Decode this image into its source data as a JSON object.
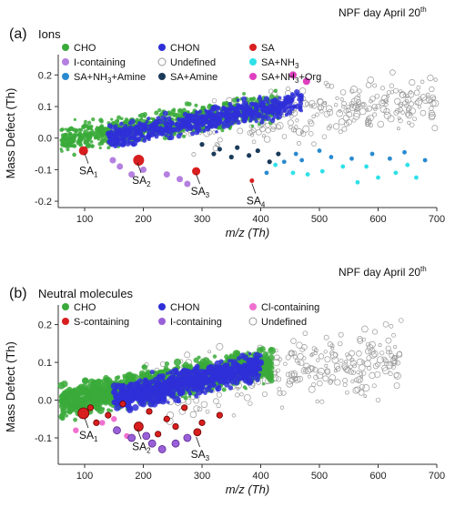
{
  "chart_data": [
    {
      "type": "scatter",
      "panel_label": "(a)",
      "panel_name": "Ions",
      "day_label": "NPF day April 20",
      "day_sup": "th",
      "xlabel": "m/z (Th)",
      "ylabel": "Mass Defect (Th)",
      "xlim": [
        55,
        700
      ],
      "ylim": [
        -0.22,
        0.25
      ],
      "xticks": [
        100,
        200,
        300,
        400,
        500,
        600,
        700
      ],
      "yticks": [
        -0.2,
        -0.1,
        0.0,
        0.1,
        0.2
      ],
      "ytick_labels": [
        "-0.2",
        "-0.1",
        "0.0",
        "0.1",
        "0.2"
      ],
      "legend": [
        {
          "label": "CHO",
          "color": "#3aaa3a",
          "marker": "filled"
        },
        {
          "label": "CHON",
          "color": "#2f2fd8",
          "marker": "filled"
        },
        {
          "label": "SA",
          "color": "#d81e1e",
          "marker": "filled"
        },
        {
          "label": "I-containing",
          "color": "#b57fe0",
          "marker": "filled"
        },
        {
          "label": "Undefined",
          "color": "#9a9a9a",
          "marker": "open"
        },
        {
          "label": "SA+NH",
          "sub": "3",
          "color": "#2fe0e8",
          "marker": "filled"
        },
        {
          "label": "SA+NH",
          "sub": "3",
          "tail": "+Amine",
          "color": "#2a8ad0",
          "marker": "filled"
        },
        {
          "label": "SA+Amine",
          "color": "#1a3a5a",
          "marker": "filled"
        },
        {
          "label": "SA+NH",
          "sub": "3",
          "tail": "+Org",
          "color": "#e040c0",
          "marker": "filled"
        }
      ],
      "annotations": [
        {
          "text": "SA",
          "sub": "1",
          "x": 100,
          "y": -0.04
        },
        {
          "text": "SA",
          "sub": "2",
          "x": 190,
          "y": -0.07
        },
        {
          "text": "SA",
          "sub": "3",
          "x": 290,
          "y": -0.105
        },
        {
          "text": "SA",
          "sub": "4",
          "x": 385,
          "y": -0.135
        }
      ],
      "sa_points": [
        [
          98,
          -0.04,
          5
        ],
        [
          192,
          -0.07,
          6
        ],
        [
          290,
          -0.105,
          4.5
        ],
        [
          385,
          -0.135,
          2.5
        ]
      ],
      "i_points": [
        [
          160,
          -0.09
        ],
        [
          180,
          -0.115
        ],
        [
          240,
          -0.115
        ],
        [
          262,
          -0.13
        ],
        [
          275,
          -0.145
        ],
        [
          148,
          -0.07
        ],
        [
          200,
          -0.1
        ]
      ],
      "sa_nh3_points": [
        [
          425,
          -0.085
        ],
        [
          480,
          -0.115
        ],
        [
          505,
          -0.105
        ],
        [
          565,
          -0.14
        ],
        [
          600,
          -0.125
        ],
        [
          650,
          -0.085
        ],
        [
          665,
          -0.125
        ],
        [
          540,
          -0.09
        ],
        [
          455,
          -0.11
        ],
        [
          580,
          -0.09
        ],
        [
          630,
          -0.11
        ]
      ],
      "sa_nh3_amine_points": [
        [
          410,
          -0.11
        ],
        [
          440,
          -0.075
        ],
        [
          470,
          -0.07
        ],
        [
          520,
          -0.06
        ],
        [
          555,
          -0.065
        ],
        [
          590,
          -0.05
        ],
        [
          620,
          -0.065
        ],
        [
          500,
          -0.04
        ],
        [
          645,
          -0.045
        ],
        [
          680,
          -0.07
        ],
        [
          460,
          -0.05
        ]
      ],
      "sa_amine_points": [
        [
          300,
          -0.02
        ],
        [
          330,
          -0.035
        ],
        [
          360,
          -0.03
        ],
        [
          380,
          -0.055
        ],
        [
          350,
          -0.06
        ],
        [
          415,
          -0.075
        ],
        [
          430,
          -0.05
        ],
        [
          395,
          -0.04
        ],
        [
          320,
          -0.05
        ]
      ],
      "sa_nh3_org_points": [
        [
          455,
          0.2
        ],
        [
          478,
          0.18
        ]
      ],
      "cho_region": {
        "x0": 60,
        "x1": 430,
        "n": 900,
        "seed": 11
      },
      "chon_region": {
        "x0": 140,
        "x1": 470,
        "n": 650,
        "seed": 23
      },
      "undef_region": {
        "x0": 260,
        "x1": 700,
        "n": 260,
        "seed": 37
      }
    },
    {
      "type": "scatter",
      "panel_label": "(b)",
      "panel_name": "Neutral molecules",
      "day_label": "NPF day April 20",
      "day_sup": "th",
      "xlabel": "m/z (Th)",
      "ylabel": "Mass Defect (Th)",
      "xlim": [
        55,
        700
      ],
      "ylim": [
        -0.17,
        0.24
      ],
      "xticks": [
        100,
        200,
        300,
        400,
        500,
        600,
        700
      ],
      "yticks": [
        -0.1,
        0.0,
        0.1,
        0.2
      ],
      "ytick_labels": [
        "-0.1",
        "0.0",
        "0.1",
        "0.2"
      ],
      "legend": [
        {
          "label": "CHO",
          "color": "#3aaa3a",
          "marker": "filled"
        },
        {
          "label": "CHON",
          "color": "#2f2fd8",
          "marker": "filled"
        },
        {
          "label": "Cl-containing",
          "color": "#f070d0",
          "marker": "filled"
        },
        {
          "label": "S-containing",
          "color": "#d81e1e",
          "marker": "filled"
        },
        {
          "label": "I-containing",
          "color": "#9a60d8",
          "marker": "filled"
        },
        {
          "label": "Undefined",
          "color": "#9a9a9a",
          "marker": "open"
        }
      ],
      "annotations": [
        {
          "text": "SA",
          "sub": "1",
          "x": 100,
          "y": -0.04
        },
        {
          "text": "SA",
          "sub": "2",
          "x": 190,
          "y": -0.07
        },
        {
          "text": "SA",
          "sub": "3",
          "x": 290,
          "y": -0.09
        }
      ],
      "sa_points": [
        [
          98,
          -0.035,
          6
        ],
        [
          192,
          -0.07,
          5
        ],
        [
          292,
          -0.085,
          4
        ]
      ],
      "i_points": [
        [
          155,
          -0.08
        ],
        [
          180,
          -0.1
        ],
        [
          215,
          -0.115
        ],
        [
          232,
          -0.13
        ],
        [
          255,
          -0.115
        ],
        [
          275,
          -0.1
        ],
        [
          205,
          -0.095
        ]
      ],
      "cl_points": [
        [
          85,
          -0.08
        ],
        [
          130,
          -0.06
        ],
        [
          172,
          -0.095
        ],
        [
          150,
          -0.05
        ]
      ],
      "s_points": [
        [
          110,
          -0.02
        ],
        [
          140,
          -0.04
        ],
        [
          165,
          -0.01
        ],
        [
          210,
          -0.03
        ],
        [
          240,
          -0.05
        ],
        [
          270,
          -0.02
        ],
        [
          300,
          -0.06
        ],
        [
          330,
          -0.04
        ],
        [
          120,
          -0.06
        ],
        [
          255,
          -0.07
        ],
        [
          225,
          -0.09
        ]
      ],
      "cho_region": {
        "x0": 60,
        "x1": 420,
        "n": 1100,
        "seed": 51
      },
      "chon_region": {
        "x0": 150,
        "x1": 400,
        "n": 700,
        "seed": 63
      },
      "undef_region": {
        "x0": 200,
        "x1": 640,
        "n": 300,
        "seed": 77
      }
    }
  ]
}
